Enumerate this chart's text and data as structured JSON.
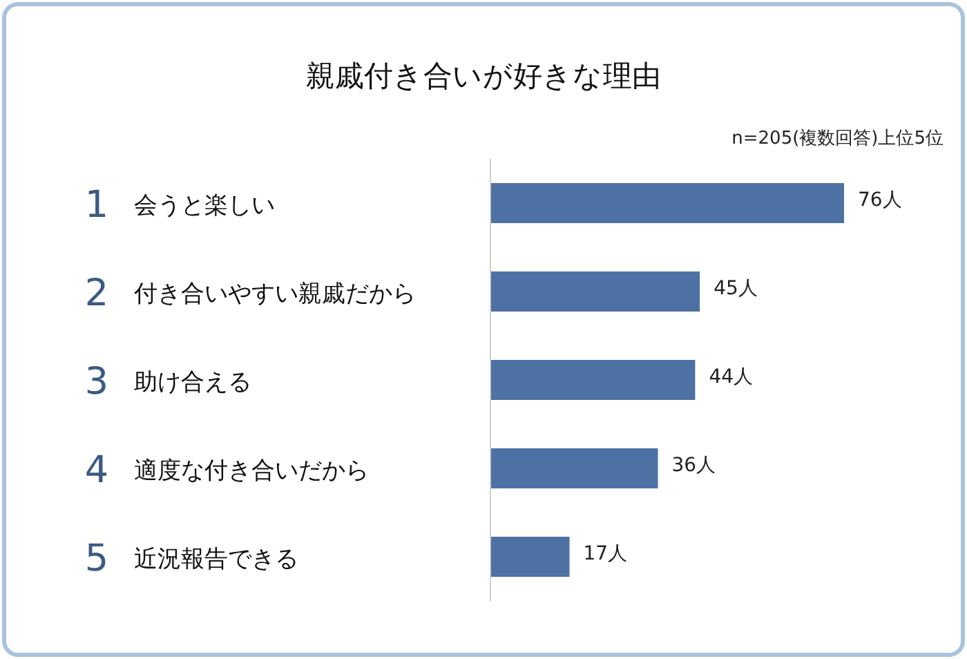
{
  "chart_data": {
    "type": "bar",
    "orientation": "horizontal",
    "title": "親戚付き合いが好きな理由",
    "subtitle": "n=205(複数回答)上位5位",
    "categories": [
      "1 会うと楽しい",
      "2 付き合いやすい親戚だから",
      "3 助け合える",
      "4 適度な付き合いだから",
      "5 近況報告できる"
    ],
    "values": [
      76,
      45,
      44,
      36,
      17
    ],
    "value_labels": [
      "76人",
      "45人",
      "44人",
      "36人",
      "17人"
    ],
    "color": "#4e71a3"
  }
}
